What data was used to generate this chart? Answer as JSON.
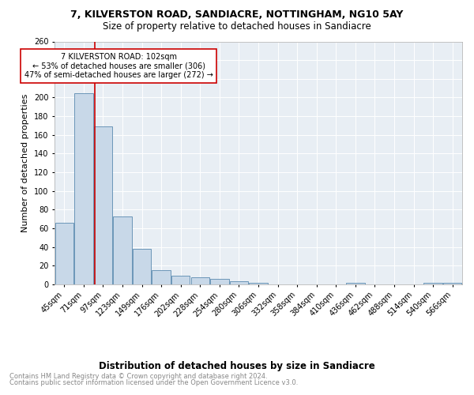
{
  "title": "7, KILVERSTON ROAD, SANDIACRE, NOTTINGHAM, NG10 5AY",
  "subtitle": "Size of property relative to detached houses in Sandiacre",
  "xlabel": "Distribution of detached houses by size in Sandiacre",
  "ylabel": "Number of detached properties",
  "bar_labels": [
    "45sqm",
    "71sqm",
    "97sqm",
    "123sqm",
    "149sqm",
    "176sqm",
    "202sqm",
    "228sqm",
    "254sqm",
    "280sqm",
    "306sqm",
    "332sqm",
    "358sqm",
    "384sqm",
    "410sqm",
    "436sqm",
    "462sqm",
    "488sqm",
    "514sqm",
    "540sqm",
    "566sqm"
  ],
  "bar_values": [
    66,
    205,
    169,
    73,
    38,
    15,
    9,
    8,
    6,
    3,
    2,
    0,
    0,
    0,
    0,
    2,
    0,
    0,
    0,
    2,
    2
  ],
  "bar_color": "#c8d8e8",
  "bar_edge_color": "#5a8ab0",
  "background_color": "#e8eef4",
  "grid_color": "#ffffff",
  "annotation_text": "7 KILVERSTON ROAD: 102sqm\n← 53% of detached houses are smaller (306)\n47% of semi-detached houses are larger (272) →",
  "vline_x": 1.57,
  "vline_color": "#cc0000",
  "ylim": [
    0,
    260
  ],
  "yticks": [
    0,
    20,
    40,
    60,
    80,
    100,
    120,
    140,
    160,
    180,
    200,
    220,
    240,
    260
  ],
  "footer_line1": "Contains HM Land Registry data © Crown copyright and database right 2024.",
  "footer_line2": "Contains public sector information licensed under the Open Government Licence v3.0.",
  "title_fontsize": 9,
  "subtitle_fontsize": 8.5,
  "xlabel_fontsize": 8.5,
  "ylabel_fontsize": 8,
  "tick_fontsize": 7,
  "annotation_fontsize": 7,
  "footer_fontsize": 6
}
